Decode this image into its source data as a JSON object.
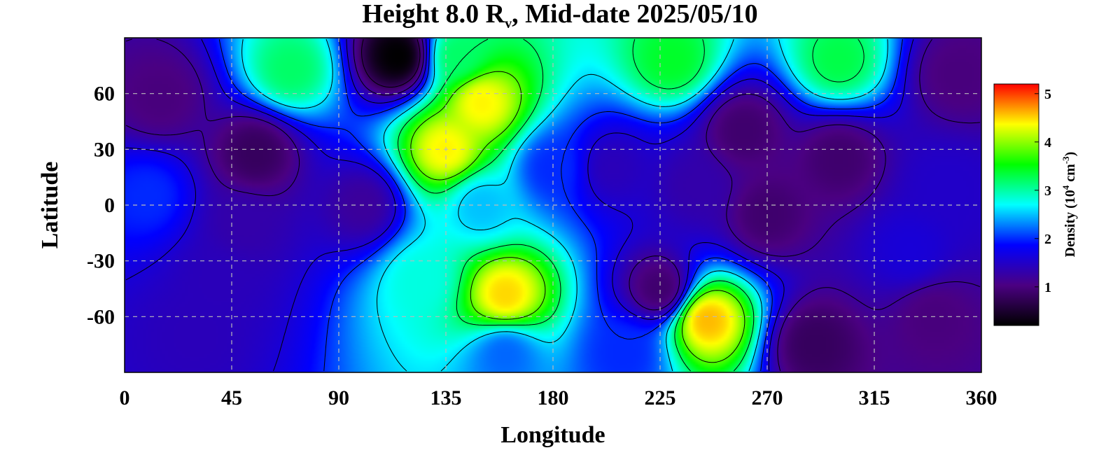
{
  "chart_data": {
    "type": "heatmap",
    "title": "Height 8.0 R",
    "title_sub": "v",
    "title_rest": ", Mid-date 2025/05/10",
    "xlabel": "Longitude",
    "ylabel": "Latitude",
    "xlim": [
      0,
      360
    ],
    "ylim": [
      -90,
      90
    ],
    "xticks": [
      0,
      45,
      90,
      135,
      180,
      225,
      270,
      315,
      360
    ],
    "yticks": [
      60,
      30,
      0,
      -30,
      -60
    ],
    "grid": true,
    "colorbar": {
      "label": "Density (10",
      "label_exp": "4",
      "label_unit": " cm",
      "label_unit_exp": "-3",
      "label_close": ")",
      "ticks": [
        1,
        2,
        3,
        4,
        5
      ],
      "range": [
        0.2,
        5.2
      ],
      "colormap": [
        "#000000",
        "#4b0082",
        "#0000ff",
        "#00ffff",
        "#00ff00",
        "#ffff00",
        "#ff0000"
      ],
      "placement": "right"
    },
    "features": [
      {
        "lon": 115,
        "lat": 80,
        "value": 0.2
      },
      {
        "lon": 150,
        "lat": 55,
        "value": 4.4
      },
      {
        "lon": 135,
        "lat": 30,
        "value": 4.4
      },
      {
        "lon": 160,
        "lat": -48,
        "value": 4.5
      },
      {
        "lon": 245,
        "lat": -62,
        "value": 4.6
      },
      {
        "lon": 140,
        "lat": 80,
        "value": 3.2
      },
      {
        "lon": 230,
        "lat": 78,
        "value": 3.4
      },
      {
        "lon": 300,
        "lat": 78,
        "value": 3.3
      },
      {
        "lon": 70,
        "lat": 73,
        "value": 3.2
      },
      {
        "lon": 260,
        "lat": 40,
        "value": 0.9
      },
      {
        "lon": 300,
        "lat": 25,
        "value": 0.9
      },
      {
        "lon": 55,
        "lat": 28,
        "value": 0.8
      },
      {
        "lon": 15,
        "lat": 58,
        "value": 1.0
      },
      {
        "lon": 100,
        "lat": 0,
        "value": 1.2
      },
      {
        "lon": 50,
        "lat": -10,
        "value": 1.3
      },
      {
        "lon": 270,
        "lat": -5,
        "value": 0.9
      },
      {
        "lon": 225,
        "lat": -45,
        "value": 0.9
      },
      {
        "lon": 290,
        "lat": -75,
        "value": 0.8
      },
      {
        "lon": 340,
        "lat": -60,
        "value": 1.0
      },
      {
        "lon": 40,
        "lat": -40,
        "value": 1.4
      },
      {
        "lon": 30,
        "lat": -70,
        "value": 1.4
      },
      {
        "lon": 205,
        "lat": 20,
        "value": 1.4
      },
      {
        "lon": 345,
        "lat": 10,
        "value": 1.5
      },
      {
        "lon": 350,
        "lat": 70,
        "value": 1.0
      },
      {
        "lon": 150,
        "lat": 0,
        "value": 2.5
      },
      {
        "lon": 125,
        "lat": -40,
        "value": 2.8
      },
      {
        "lon": 180,
        "lat": 20,
        "value": 2.0
      },
      {
        "lon": 210,
        "lat": -80,
        "value": 2.0
      },
      {
        "lon": 160,
        "lat": -80,
        "value": 2.2
      },
      {
        "lon": 10,
        "lat": 5,
        "value": 2.0
      },
      {
        "lon": 330,
        "lat": -25,
        "value": 1.6
      },
      {
        "lon": 240,
        "lat": 10,
        "value": 1.3
      }
    ]
  }
}
